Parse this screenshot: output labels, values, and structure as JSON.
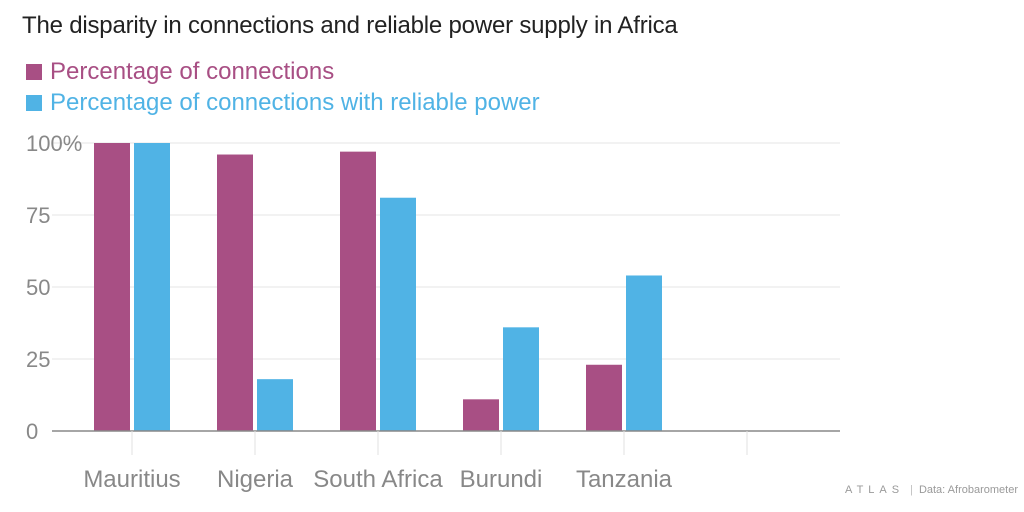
{
  "title": "The disparity in connections and reliable power supply in Africa",
  "legend": [
    {
      "label": "Percentage of connections",
      "color": "#a84f84"
    },
    {
      "label": "Percentage of connections with reliable power",
      "color": "#50b3e5"
    }
  ],
  "footer": {
    "brand": "ATLAS",
    "separator": "|",
    "source": "Data: Afrobarometer"
  },
  "chart_data": {
    "type": "bar",
    "title": "The disparity in connections and reliable power supply in Africa",
    "categories": [
      "Mauritius",
      "Nigeria",
      "South Africa",
      "Burundi",
      "Tanzania"
    ],
    "series": [
      {
        "name": "Percentage of connections",
        "color": "#a84f84",
        "values": [
          100,
          96,
          97,
          11,
          23
        ]
      },
      {
        "name": "Percentage of connections with reliable power",
        "color": "#50b3e5",
        "values": [
          100,
          18,
          81,
          36,
          54
        ]
      }
    ],
    "yticks": [
      "0",
      "25",
      "50",
      "75",
      "100%"
    ],
    "ylim": [
      0,
      100
    ],
    "grid": true,
    "legend_position": "top-left"
  }
}
